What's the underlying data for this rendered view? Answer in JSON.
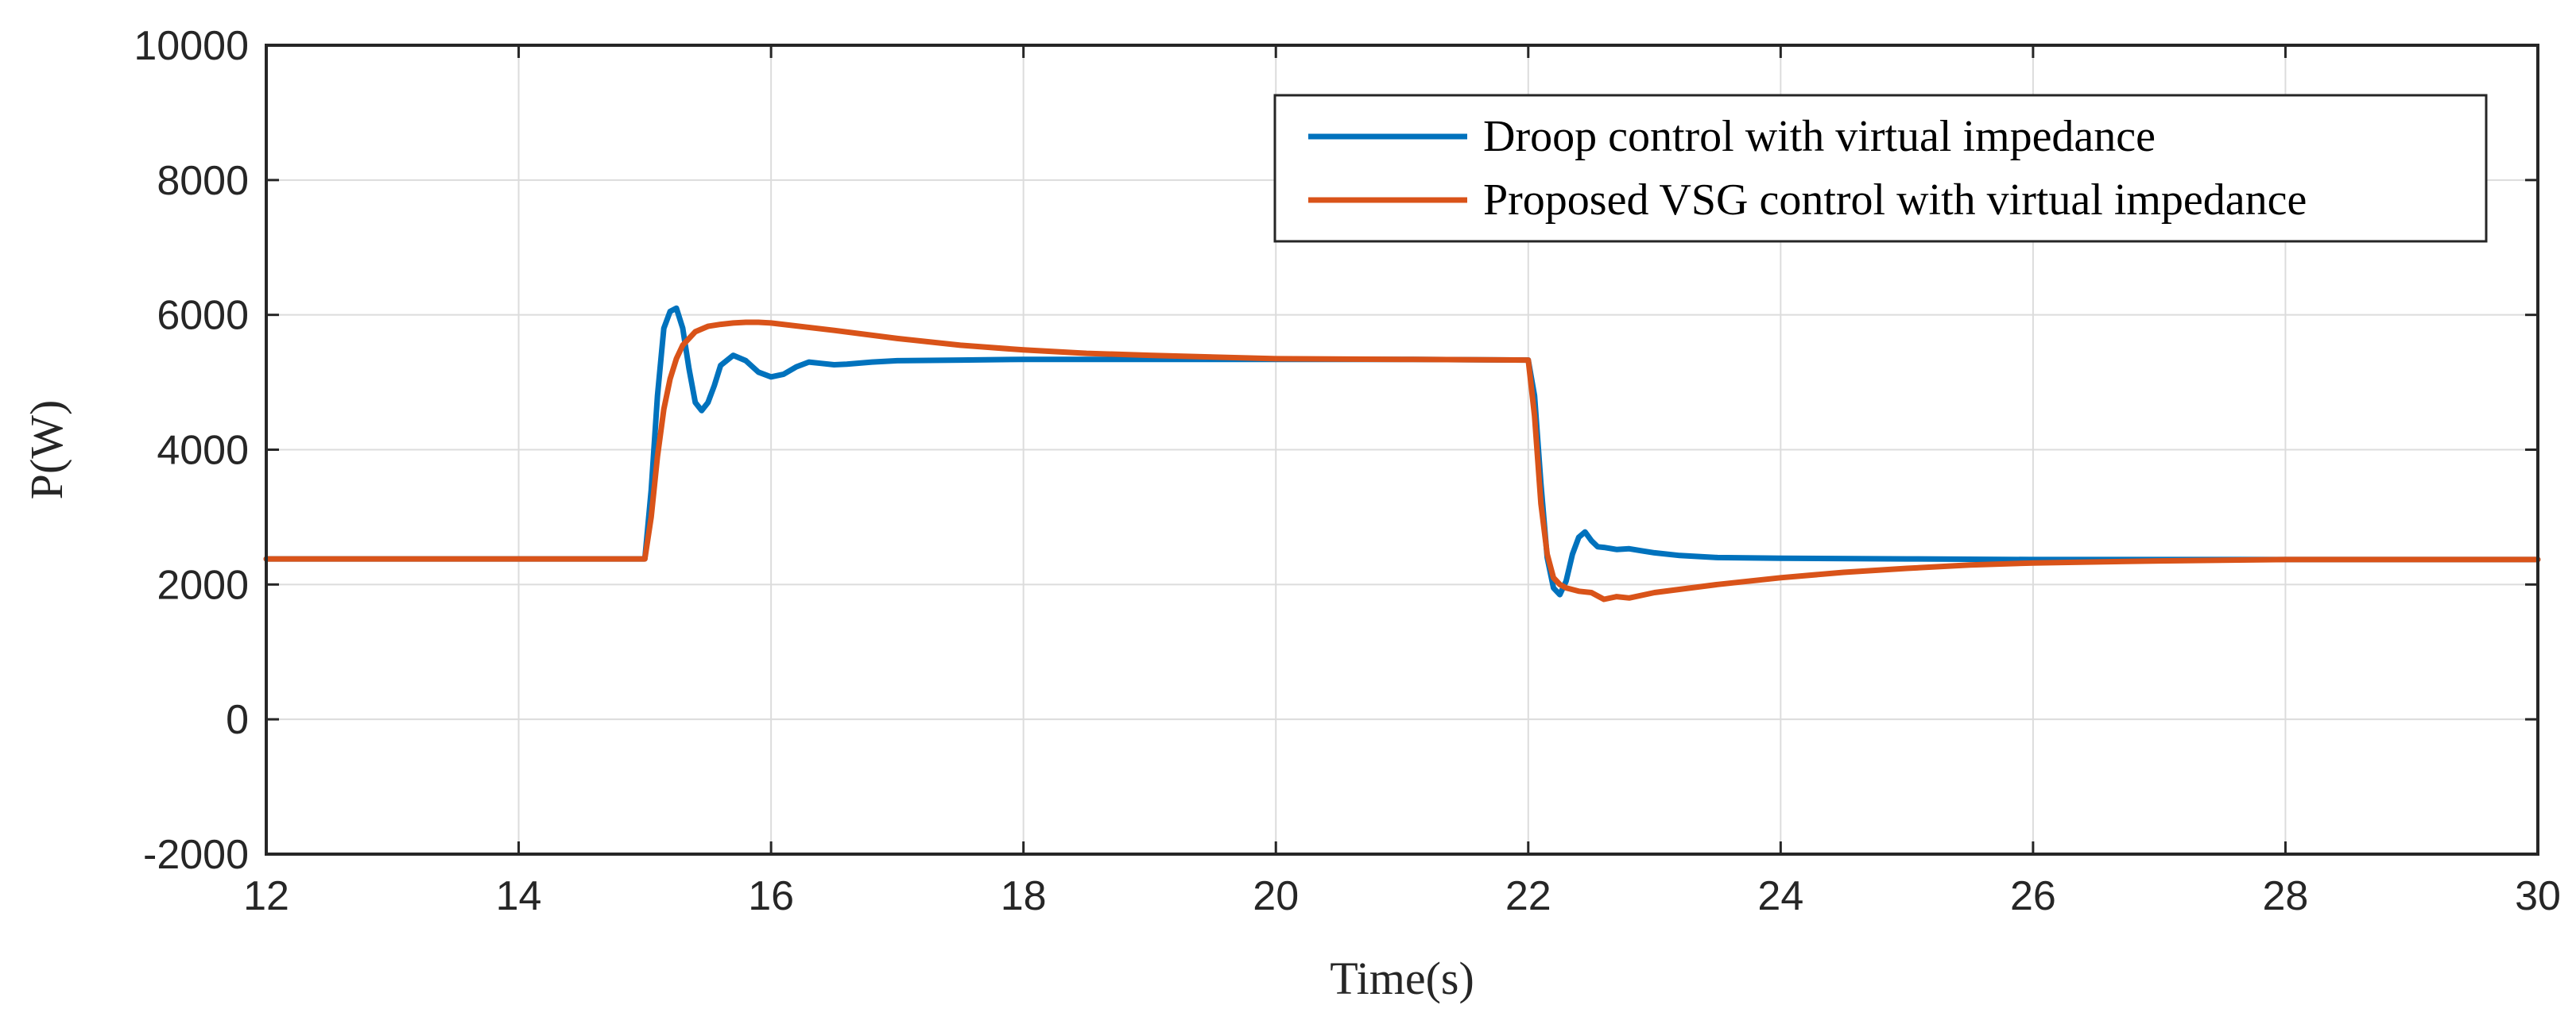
{
  "chart_data": {
    "type": "line",
    "title": "",
    "xlabel": "Time(s)",
    "ylabel": "P(W)",
    "xlim": [
      12,
      30
    ],
    "ylim": [
      -2000,
      10000
    ],
    "xticks": [
      12,
      14,
      16,
      18,
      20,
      22,
      24,
      26,
      28,
      30
    ],
    "yticks": [
      -2000,
      0,
      2000,
      4000,
      6000,
      8000,
      10000
    ],
    "xtick_labels": [
      "12",
      "14",
      "16",
      "18",
      "20",
      "22",
      "24",
      "26",
      "28",
      "30"
    ],
    "ytick_labels": [
      "-2000",
      "0",
      "2000",
      "4000",
      "6000",
      "8000",
      "10000"
    ],
    "grid": true,
    "legend_position": "top-right",
    "series": [
      {
        "name": "Droop control with virtual impedance",
        "color": "#0072BD",
        "x": [
          12,
          15.0,
          15.05,
          15.1,
          15.15,
          15.2,
          15.25,
          15.3,
          15.35,
          15.4,
          15.45,
          15.5,
          15.55,
          15.6,
          15.7,
          15.8,
          15.9,
          16.0,
          16.1,
          16.2,
          16.3,
          16.4,
          16.5,
          16.6,
          16.8,
          17.0,
          17.5,
          18.0,
          19.0,
          20.0,
          21.0,
          22.0,
          22.05,
          22.1,
          22.15,
          22.2,
          22.25,
          22.3,
          22.35,
          22.4,
          22.45,
          22.5,
          22.55,
          22.6,
          22.7,
          22.8,
          22.9,
          23.0,
          23.2,
          23.5,
          24.0,
          25.0,
          26.0,
          27.0,
          28.0,
          29.0,
          30.0
        ],
        "y": [
          2380,
          2380,
          3400,
          4800,
          5800,
          6050,
          6100,
          5800,
          5200,
          4700,
          4580,
          4700,
          4950,
          5250,
          5400,
          5320,
          5150,
          5080,
          5120,
          5230,
          5300,
          5280,
          5260,
          5270,
          5300,
          5320,
          5330,
          5340,
          5340,
          5340,
          5340,
          5330,
          4800,
          3500,
          2400,
          1950,
          1850,
          2050,
          2450,
          2700,
          2780,
          2650,
          2560,
          2550,
          2520,
          2530,
          2500,
          2470,
          2430,
          2400,
          2390,
          2380,
          2370,
          2370,
          2370,
          2370,
          2370
        ]
      },
      {
        "name": "Proposed VSG control with virtual impedance",
        "color": "#D95319",
        "x": [
          12,
          15.0,
          15.05,
          15.1,
          15.15,
          15.2,
          15.25,
          15.3,
          15.4,
          15.5,
          15.6,
          15.7,
          15.8,
          15.9,
          16.0,
          16.5,
          17.0,
          17.5,
          18.0,
          18.5,
          19.0,
          20.0,
          21.0,
          22.0,
          22.05,
          22.1,
          22.15,
          22.2,
          22.25,
          22.3,
          22.4,
          22.5,
          22.6,
          22.7,
          22.8,
          23.0,
          23.5,
          24.0,
          24.5,
          25.0,
          25.5,
          26.0,
          27.0,
          28.0,
          29.0,
          30.0
        ],
        "y": [
          2380,
          2380,
          3000,
          3900,
          4600,
          5050,
          5350,
          5550,
          5750,
          5830,
          5860,
          5880,
          5890,
          5890,
          5880,
          5770,
          5650,
          5550,
          5480,
          5430,
          5400,
          5350,
          5340,
          5330,
          4500,
          3200,
          2450,
          2100,
          2000,
          1950,
          1900,
          1880,
          1780,
          1820,
          1800,
          1880,
          2000,
          2100,
          2180,
          2240,
          2290,
          2320,
          2350,
          2370,
          2370,
          2370
        ]
      }
    ]
  }
}
